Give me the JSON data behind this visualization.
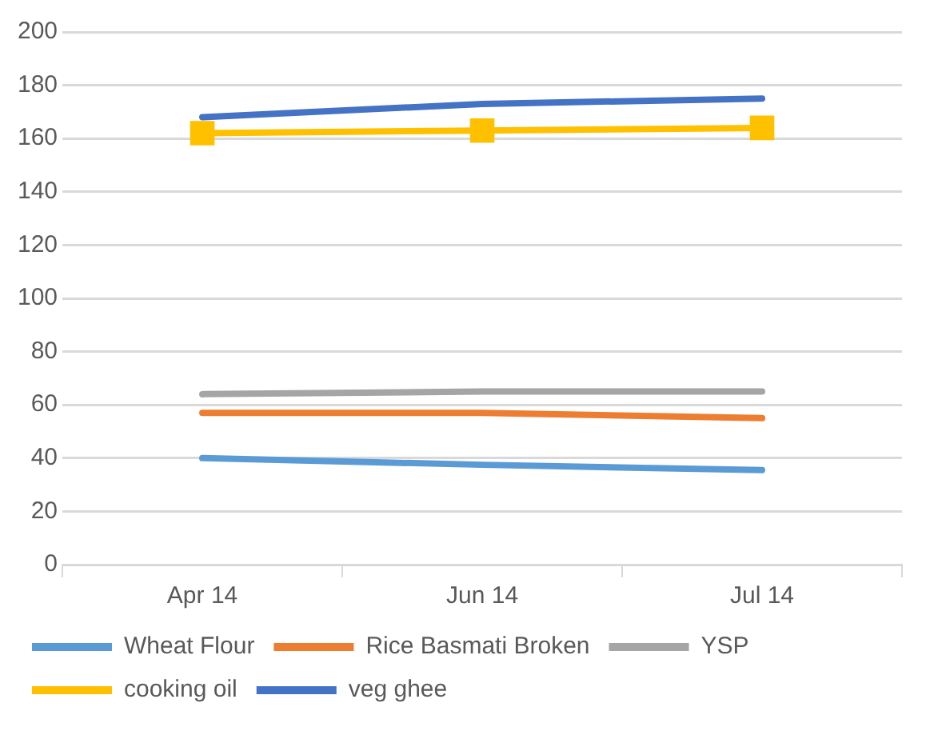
{
  "chart_data": {
    "type": "line",
    "categories": [
      "Apr 14",
      "Jun 14",
      "Jul 14"
    ],
    "series": [
      {
        "name": "Wheat Flour",
        "color": "#5b9bd5",
        "values": [
          40,
          37.5,
          35.5
        ]
      },
      {
        "name": "Rice Basmati Broken",
        "color": "#ed7d31",
        "values": [
          57,
          57,
          55
        ]
      },
      {
        "name": "YSP",
        "color": "#a5a5a5",
        "values": [
          64,
          65,
          65
        ]
      },
      {
        "name": "cooking oil",
        "color": "#ffc000",
        "values": [
          162,
          163,
          164
        ],
        "marker": "square"
      },
      {
        "name": "veg ghee",
        "color": "#4472c4",
        "values": [
          168,
          173,
          175
        ]
      }
    ],
    "ylim": [
      0,
      200
    ],
    "yticks": [
      0,
      20,
      40,
      60,
      80,
      100,
      120,
      140,
      160,
      180,
      200
    ],
    "grid": "y",
    "legend": "bottom",
    "marker": "none",
    "line_style": "solid"
  }
}
